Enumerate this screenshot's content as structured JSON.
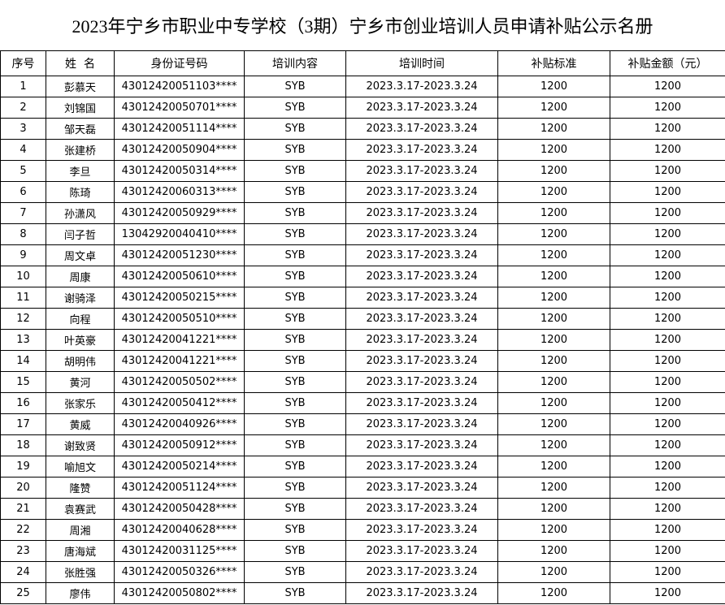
{
  "header": {
    "title": "2023年宁乡市职业中专学校（3期）宁乡市创业培训人员申请补贴公示名册"
  },
  "table": {
    "columns": [
      "序号",
      "姓  名",
      "身份证号码",
      "培训内容",
      "培训时间",
      "补贴标准",
      "补贴金额（元）"
    ],
    "rows": [
      [
        "1",
        "彭慕天",
        "43012420051103****",
        "SYB",
        "2023.3.17-2023.3.24",
        "1200",
        "1200"
      ],
      [
        "2",
        "刘锦国",
        "43012420050701****",
        "SYB",
        "2023.3.17-2023.3.24",
        "1200",
        "1200"
      ],
      [
        "3",
        "邹天磊",
        "43012420051114****",
        "SYB",
        "2023.3.17-2023.3.24",
        "1200",
        "1200"
      ],
      [
        "4",
        "张建桥",
        "43012420050904****",
        "SYB",
        "2023.3.17-2023.3.24",
        "1200",
        "1200"
      ],
      [
        "5",
        "李旦",
        "43012420050314****",
        "SYB",
        "2023.3.17-2023.3.24",
        "1200",
        "1200"
      ],
      [
        "6",
        "陈琦",
        "43012420060313****",
        "SYB",
        "2023.3.17-2023.3.24",
        "1200",
        "1200"
      ],
      [
        "7",
        "孙潇风",
        "43012420050929****",
        "SYB",
        "2023.3.17-2023.3.24",
        "1200",
        "1200"
      ],
      [
        "8",
        "闫子哲",
        "13042920040410****",
        "SYB",
        "2023.3.17-2023.3.24",
        "1200",
        "1200"
      ],
      [
        "9",
        "周文卓",
        "43012420051230****",
        "SYB",
        "2023.3.17-2023.3.24",
        "1200",
        "1200"
      ],
      [
        "10",
        "周康",
        "43012420050610****",
        "SYB",
        "2023.3.17-2023.3.24",
        "1200",
        "1200"
      ],
      [
        "11",
        "谢骑泽",
        "43012420050215****",
        "SYB",
        "2023.3.17-2023.3.24",
        "1200",
        "1200"
      ],
      [
        "12",
        "向程",
        "43012420050510****",
        "SYB",
        "2023.3.17-2023.3.24",
        "1200",
        "1200"
      ],
      [
        "13",
        "叶英豪",
        "43012420041221****",
        "SYB",
        "2023.3.17-2023.3.24",
        "1200",
        "1200"
      ],
      [
        "14",
        "胡明伟",
        "43012420041221****",
        "SYB",
        "2023.3.17-2023.3.24",
        "1200",
        "1200"
      ],
      [
        "15",
        "黄河",
        "43012420050502****",
        "SYB",
        "2023.3.17-2023.3.24",
        "1200",
        "1200"
      ],
      [
        "16",
        "张家乐",
        "43012420050412****",
        "SYB",
        "2023.3.17-2023.3.24",
        "1200",
        "1200"
      ],
      [
        "17",
        "黄威",
        "43012420040926****",
        "SYB",
        "2023.3.17-2023.3.24",
        "1200",
        "1200"
      ],
      [
        "18",
        "谢致贤",
        "43012420050912****",
        "SYB",
        "2023.3.17-2023.3.24",
        "1200",
        "1200"
      ],
      [
        "19",
        "喻旭文",
        "43012420050214****",
        "SYB",
        "2023.3.17-2023.3.24",
        "1200",
        "1200"
      ],
      [
        "20",
        "隆赞",
        "43012420051124****",
        "SYB",
        "2023.3.17-2023.3.24",
        "1200",
        "1200"
      ],
      [
        "21",
        "袁赛武",
        "43012420050428****",
        "SYB",
        "2023.3.17-2023.3.24",
        "1200",
        "1200"
      ],
      [
        "22",
        "周湘",
        "43012420040628****",
        "SYB",
        "2023.3.17-2023.3.24",
        "1200",
        "1200"
      ],
      [
        "23",
        "唐海斌",
        "43012420031125****",
        "SYB",
        "2023.3.17-2023.3.24",
        "1200",
        "1200"
      ],
      [
        "24",
        "张胜强",
        "43012420050326****",
        "SYB",
        "2023.3.17-2023.3.24",
        "1200",
        "1200"
      ],
      [
        "25",
        "廖伟",
        "43012420050802****",
        "SYB",
        "2023.3.17-2023.3.24",
        "1200",
        "1200"
      ]
    ]
  }
}
